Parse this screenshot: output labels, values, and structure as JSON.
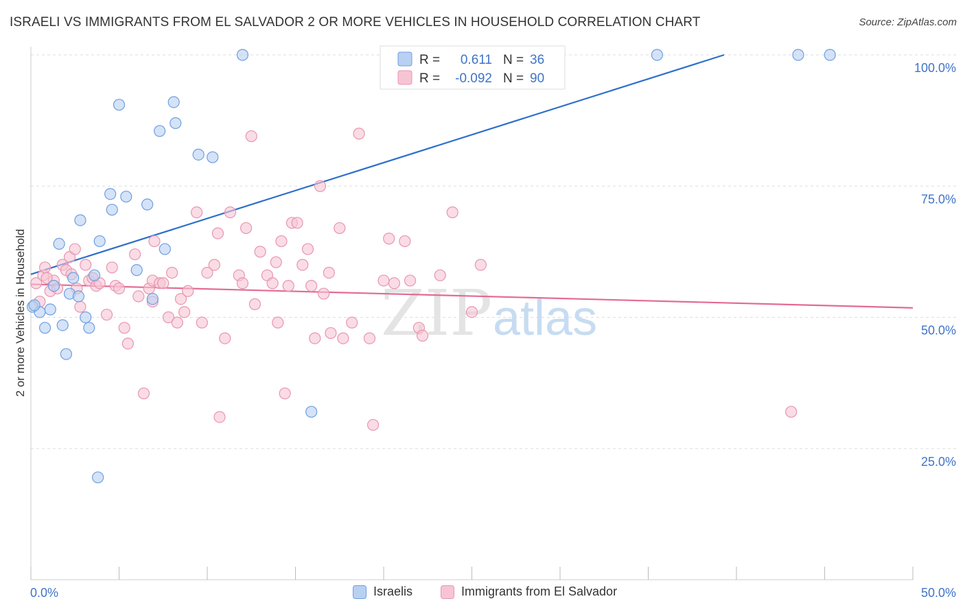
{
  "title": "ISRAELI VS IMMIGRANTS FROM EL SALVADOR 2 OR MORE VEHICLES IN HOUSEHOLD CORRELATION CHART",
  "source": "Source: ZipAtlas.com",
  "watermark": {
    "zip": "ZIP",
    "atlas": "atlas"
  },
  "colors": {
    "blue_fill": "#b8d0f2",
    "blue_stroke": "#6f9ee0",
    "blue_line": "#2c6fcc",
    "pink_fill": "#f7c4d4",
    "pink_stroke": "#e895b0",
    "pink_line": "#e36a95",
    "axis_text": "#3f74c9",
    "grid": "#dddddd"
  },
  "legend": {
    "rows": [
      {
        "r_label": "R =",
        "r_value": "0.611",
        "n_label": "N =",
        "n_value": "36"
      },
      {
        "r_label": "R =",
        "r_value": "-0.092",
        "n_label": "N =",
        "n_value": "90"
      }
    ]
  },
  "chart_data": {
    "type": "scatter",
    "title": "ISRAELI VS IMMIGRANTS FROM EL SALVADOR 2 OR MORE VEHICLES IN HOUSEHOLD CORRELATION CHART",
    "xlabel": "",
    "ylabel": "2 or more Vehicles in Household",
    "xlim": [
      0,
      50
    ],
    "ylim": [
      0,
      100
    ],
    "x_tick_labels": [
      "0.0%",
      "50.0%"
    ],
    "y_ticks": [
      25,
      50,
      75,
      100
    ],
    "y_tick_labels": [
      "25.0%",
      "50.0%",
      "75.0%",
      "100.0%"
    ],
    "grid": true,
    "legend_position": "top-center",
    "series": [
      {
        "name": "Israelis",
        "r": 0.611,
        "n": 36,
        "trend": [
          [
            0,
            58.2
          ],
          [
            39.3,
            100
          ]
        ],
        "points": [
          [
            0.1,
            52.0
          ],
          [
            0.5,
            51.0
          ],
          [
            0.8,
            48.0
          ],
          [
            1.1,
            51.5
          ],
          [
            1.3,
            56.0
          ],
          [
            1.6,
            64.0
          ],
          [
            1.8,
            48.5
          ],
          [
            2.0,
            43.0
          ],
          [
            2.2,
            54.5
          ],
          [
            2.4,
            57.5
          ],
          [
            2.7,
            54.0
          ],
          [
            2.8,
            68.5
          ],
          [
            3.1,
            50.0
          ],
          [
            3.3,
            48.0
          ],
          [
            3.6,
            58.0
          ],
          [
            3.8,
            19.5
          ],
          [
            3.9,
            64.5
          ],
          [
            4.6,
            70.5
          ],
          [
            4.5,
            73.5
          ],
          [
            5.0,
            90.5
          ],
          [
            5.4,
            73.0
          ],
          [
            6.0,
            59.0
          ],
          [
            6.6,
            71.5
          ],
          [
            6.9,
            53.5
          ],
          [
            7.3,
            85.5
          ],
          [
            7.6,
            63.0
          ],
          [
            8.1,
            91.0
          ],
          [
            8.2,
            87.0
          ],
          [
            9.5,
            81.0
          ],
          [
            10.3,
            80.5
          ],
          [
            12.0,
            100.0
          ],
          [
            15.9,
            32.0
          ],
          [
            35.5,
            100.0
          ],
          [
            43.5,
            100.0
          ],
          [
            45.3,
            100.0
          ],
          [
            0.2,
            52.3
          ]
        ]
      },
      {
        "name": "Immigrants from El Salvador",
        "r": -0.092,
        "n": 90,
        "trend": [
          [
            0,
            56.3
          ],
          [
            50,
            51.8
          ]
        ],
        "points": [
          [
            0.3,
            56.5
          ],
          [
            0.5,
            53.0
          ],
          [
            0.7,
            58.0
          ],
          [
            0.8,
            59.5
          ],
          [
            1.1,
            55.0
          ],
          [
            1.3,
            57.0
          ],
          [
            1.5,
            55.5
          ],
          [
            1.8,
            60.0
          ],
          [
            2.0,
            59.0
          ],
          [
            2.2,
            61.5
          ],
          [
            2.5,
            63.0
          ],
          [
            2.6,
            55.5
          ],
          [
            2.8,
            52.0
          ],
          [
            3.1,
            60.0
          ],
          [
            3.3,
            57.0
          ],
          [
            3.5,
            57.5
          ],
          [
            3.7,
            56.0
          ],
          [
            3.9,
            56.5
          ],
          [
            4.3,
            50.5
          ],
          [
            4.6,
            59.5
          ],
          [
            4.8,
            56.0
          ],
          [
            5.0,
            55.5
          ],
          [
            5.3,
            48.0
          ],
          [
            5.5,
            45.0
          ],
          [
            5.9,
            62.0
          ],
          [
            6.1,
            54.0
          ],
          [
            6.4,
            35.5
          ],
          [
            6.7,
            55.5
          ],
          [
            6.9,
            57.0
          ],
          [
            7.0,
            64.5
          ],
          [
            7.3,
            56.5
          ],
          [
            7.5,
            56.5
          ],
          [
            7.8,
            50.0
          ],
          [
            8.0,
            58.5
          ],
          [
            8.3,
            49.0
          ],
          [
            8.5,
            53.5
          ],
          [
            8.7,
            51.0
          ],
          [
            8.9,
            55.0
          ],
          [
            9.4,
            70.0
          ],
          [
            9.7,
            49.0
          ],
          [
            10.0,
            58.5
          ],
          [
            10.4,
            60.0
          ],
          [
            10.6,
            66.0
          ],
          [
            10.7,
            31.0
          ],
          [
            11.0,
            46.0
          ],
          [
            11.3,
            70.0
          ],
          [
            11.8,
            58.0
          ],
          [
            12.0,
            56.5
          ],
          [
            12.2,
            67.0
          ],
          [
            12.5,
            84.5
          ],
          [
            12.7,
            52.5
          ],
          [
            13.0,
            62.5
          ],
          [
            13.4,
            58.0
          ],
          [
            13.7,
            56.5
          ],
          [
            14.0,
            49.0
          ],
          [
            14.2,
            64.5
          ],
          [
            14.4,
            35.5
          ],
          [
            14.6,
            56.0
          ],
          [
            14.8,
            68.0
          ],
          [
            15.1,
            68.0
          ],
          [
            15.4,
            60.0
          ],
          [
            15.7,
            63.0
          ],
          [
            15.9,
            56.0
          ],
          [
            16.1,
            46.0
          ],
          [
            16.4,
            75.0
          ],
          [
            16.6,
            54.5
          ],
          [
            16.9,
            58.5
          ],
          [
            17.0,
            47.0
          ],
          [
            17.5,
            67.0
          ],
          [
            17.7,
            46.0
          ],
          [
            18.2,
            49.0
          ],
          [
            18.6,
            85.0
          ],
          [
            19.2,
            46.0
          ],
          [
            19.4,
            29.5
          ],
          [
            20.0,
            57.0
          ],
          [
            20.3,
            65.0
          ],
          [
            20.6,
            56.5
          ],
          [
            21.2,
            64.5
          ],
          [
            21.5,
            57.0
          ],
          [
            22.0,
            48.0
          ],
          [
            22.2,
            46.5
          ],
          [
            23.2,
            58.0
          ],
          [
            23.9,
            70.0
          ],
          [
            25.0,
            51.0
          ],
          [
            25.5,
            60.0
          ],
          [
            43.1,
            32.0
          ],
          [
            2.3,
            58.2
          ],
          [
            6.9,
            53.0
          ],
          [
            13.9,
            60.5
          ],
          [
            0.9,
            57.5
          ]
        ]
      }
    ]
  }
}
